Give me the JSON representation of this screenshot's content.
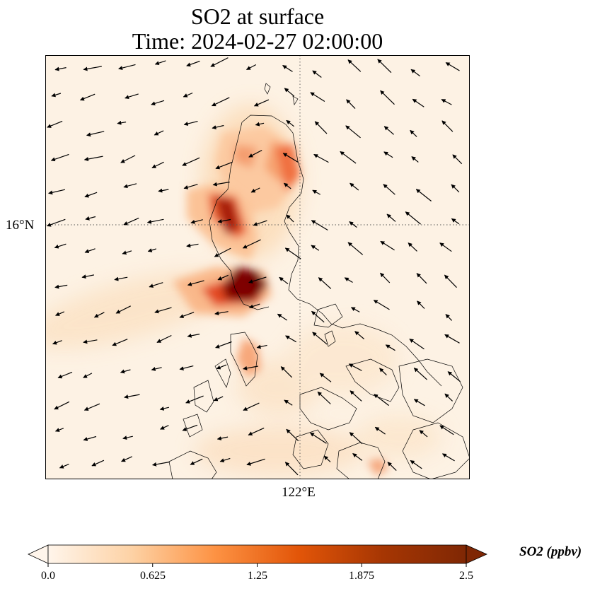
{
  "title": {
    "line1": "SO2 at surface",
    "line2": "Time: 2024-02-27 02:00:00"
  },
  "map": {
    "lat_gridline_label": "16°N",
    "lon_gridline_label": "122°E",
    "background_color": "#fdf2e4",
    "coastline_color": "#000000"
  },
  "colorbar": {
    "label": "SO2 (ppbv)",
    "ticks": [
      "0.0",
      "0.625",
      "1.25",
      "1.875",
      "2.5"
    ],
    "min": 0.0,
    "max": 2.5,
    "colors": [
      "#fff5eb",
      "#fdd2a5",
      "#fd9243",
      "#e25508",
      "#a63603",
      "#7f2704"
    ],
    "extend": "both"
  }
}
